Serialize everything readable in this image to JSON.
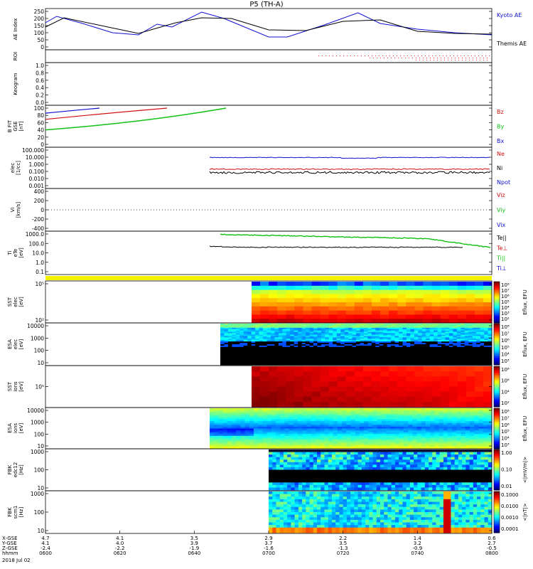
{
  "title": "P5 (TH-A)",
  "colors": {
    "kyoto": "#1010d0",
    "themis": "#000000",
    "red": "#d01010",
    "green": "#10c010",
    "blue": "#1010d0",
    "spectro_bg": "#202020",
    "roi": "#ff2020"
  },
  "panels": [
    {
      "id": "ae",
      "ylabel": [
        "AE Index"
      ],
      "ticks": [
        "250",
        "200",
        "150",
        "100",
        "50",
        "0"
      ],
      "legend": [
        "Kyoto AE",
        "Themis AE"
      ]
    },
    {
      "id": "roi",
      "ylabel": [
        "ROI"
      ],
      "ticks": [],
      "legend": []
    },
    {
      "id": "keogram",
      "ylabel": [
        "Keogram"
      ],
      "ticks": [
        "1.0",
        "0.8",
        "0.6",
        "0.4",
        "0.2",
        "0.0"
      ],
      "legend": []
    },
    {
      "id": "bfield",
      "ylabel": [
        "B FIT",
        "GSE",
        "[nT]"
      ],
      "ticks": [
        "100",
        "80",
        "60",
        "40",
        "20",
        "0"
      ],
      "legend": [
        "Bz",
        "By",
        "Bx"
      ]
    },
    {
      "id": "dens",
      "ylabel": [
        "elec",
        "[1/cc]"
      ],
      "ticks": [
        "100.000",
        "10.000",
        "1.000",
        "0.100",
        "0.010",
        "0.001"
      ],
      "legend": [
        "Ne",
        "Ni",
        "Npot"
      ]
    },
    {
      "id": "vel",
      "ylabel": [
        "Vi",
        "[km/s]"
      ],
      "ticks": [
        "400",
        "200",
        "0",
        "-200",
        "-400"
      ],
      "legend": [
        "Viz",
        "Viy",
        "Vix"
      ]
    },
    {
      "id": "temp",
      "ylabel": [
        "Ti",
        "eTe",
        "[eV]"
      ],
      "ticks": [
        "1000.0",
        "100.0",
        "10.0",
        "1.0",
        "0.1"
      ],
      "legend": [
        "Te||",
        "Te⊥",
        "Ti||",
        "Ti⊥"
      ]
    },
    {
      "id": "sste",
      "ylabel": [
        "SST",
        "elec",
        "[eV]"
      ],
      "ticks": [
        "10⁵",
        "10²"
      ],
      "legend": []
    },
    {
      "id": "esae",
      "ylabel": [
        "ESA",
        "elec",
        "[eV]"
      ],
      "ticks": [
        "10000",
        "1000",
        "100",
        "10"
      ],
      "legend": []
    },
    {
      "id": "ssti",
      "ylabel": [
        "SST",
        "ions",
        "[eV]"
      ],
      "ticks": [
        "10⁵"
      ],
      "legend": []
    },
    {
      "id": "esai",
      "ylabel": [
        "ESA",
        "ions",
        "[eV]"
      ],
      "ticks": [
        "10000",
        "1000",
        "100",
        "10"
      ],
      "legend": []
    },
    {
      "id": "fbk1",
      "ylabel": [
        "FBK",
        "edc12",
        "[Hz]"
      ],
      "ticks": [
        "1000",
        "100",
        "10"
      ],
      "legend": []
    },
    {
      "id": "fbk2",
      "ylabel": [
        "FBK",
        "scm1",
        "[Hz]"
      ],
      "ticks": [
        "1000",
        "100",
        "10"
      ],
      "legend": []
    }
  ],
  "colorbars": [
    {
      "label": "Eflux, EFU",
      "ticks": [
        "10⁸",
        "10⁷",
        "10⁶",
        "10⁵",
        "10⁴",
        "10³",
        "10²"
      ]
    },
    {
      "label": "Eflux, EFU",
      "ticks": [
        "10⁸",
        "10⁷",
        "10⁶",
        "10⁵",
        "10⁴",
        "10³"
      ]
    },
    {
      "label": "Eflux, EFU",
      "ticks": [
        "10⁸",
        "10⁶",
        "10⁴",
        "10²"
      ]
    },
    {
      "label": "Eflux, EFU",
      "ticks": [
        "10⁸",
        "10⁷",
        "10⁶",
        "10⁵",
        "10⁴",
        "10³"
      ]
    },
    {
      "label": "<|mV/m|>",
      "ticks": [
        "1.00",
        "0.10",
        "0.01"
      ]
    },
    {
      "label": "<|nT|>",
      "ticks": [
        "0.1000",
        "0.0100",
        "0.0010",
        "0.0001"
      ]
    }
  ],
  "xaxis": {
    "row_labels": [
      "X-GSE",
      "Y-GSE",
      "Z-GSE",
      "hhmm"
    ],
    "date": "2018 Jul 02",
    "columns": [
      {
        "time": "0600",
        "x": "4.7",
        "y": "4.1",
        "z": "-2.4"
      },
      {
        "time": "0620",
        "x": "4.1",
        "y": "4.0",
        "z": "-2.2"
      },
      {
        "time": "0640",
        "x": "3.5",
        "y": "3.9",
        "z": "-1.9"
      },
      {
        "time": "0700",
        "x": "2.9",
        "y": "3.7",
        "z": "-1.6"
      },
      {
        "time": "0720",
        "x": "2.2",
        "y": "3.5",
        "z": "-1.3"
      },
      {
        "time": "0740",
        "x": "1.4",
        "y": "3.2",
        "z": "-0.9"
      },
      {
        "time": "0800",
        "x": "0.6",
        "y": "2.7",
        "z": "-0.5"
      }
    ]
  },
  "chart_data": {
    "type": "line",
    "title": "P5 (TH-A)",
    "x_range": [
      "06:00",
      "08:00"
    ],
    "series": [
      {
        "name": "Kyoto AE",
        "x": [
          "06:00",
          "06:03",
          "06:10",
          "06:18",
          "06:25",
          "06:30",
          "06:34",
          "06:42",
          "06:48",
          "07:00",
          "07:05",
          "07:15",
          "07:24",
          "07:30",
          "07:40",
          "07:50",
          "08:00"
        ],
        "values": [
          170,
          215,
          165,
          100,
          85,
          160,
          140,
          245,
          200,
          70,
          70,
          155,
          240,
          165,
          125,
          100,
          85
        ]
      },
      {
        "name": "Themis AE",
        "x": [
          "06:00",
          "06:05",
          "06:15",
          "06:25",
          "06:35",
          "06:42",
          "06:50",
          "07:00",
          "07:10",
          "07:20",
          "07:30",
          "07:40",
          "07:50",
          "08:00"
        ],
        "values": [
          140,
          205,
          150,
          95,
          170,
          205,
          200,
          120,
          115,
          180,
          190,
          110,
          95,
          90
        ]
      }
    ]
  }
}
